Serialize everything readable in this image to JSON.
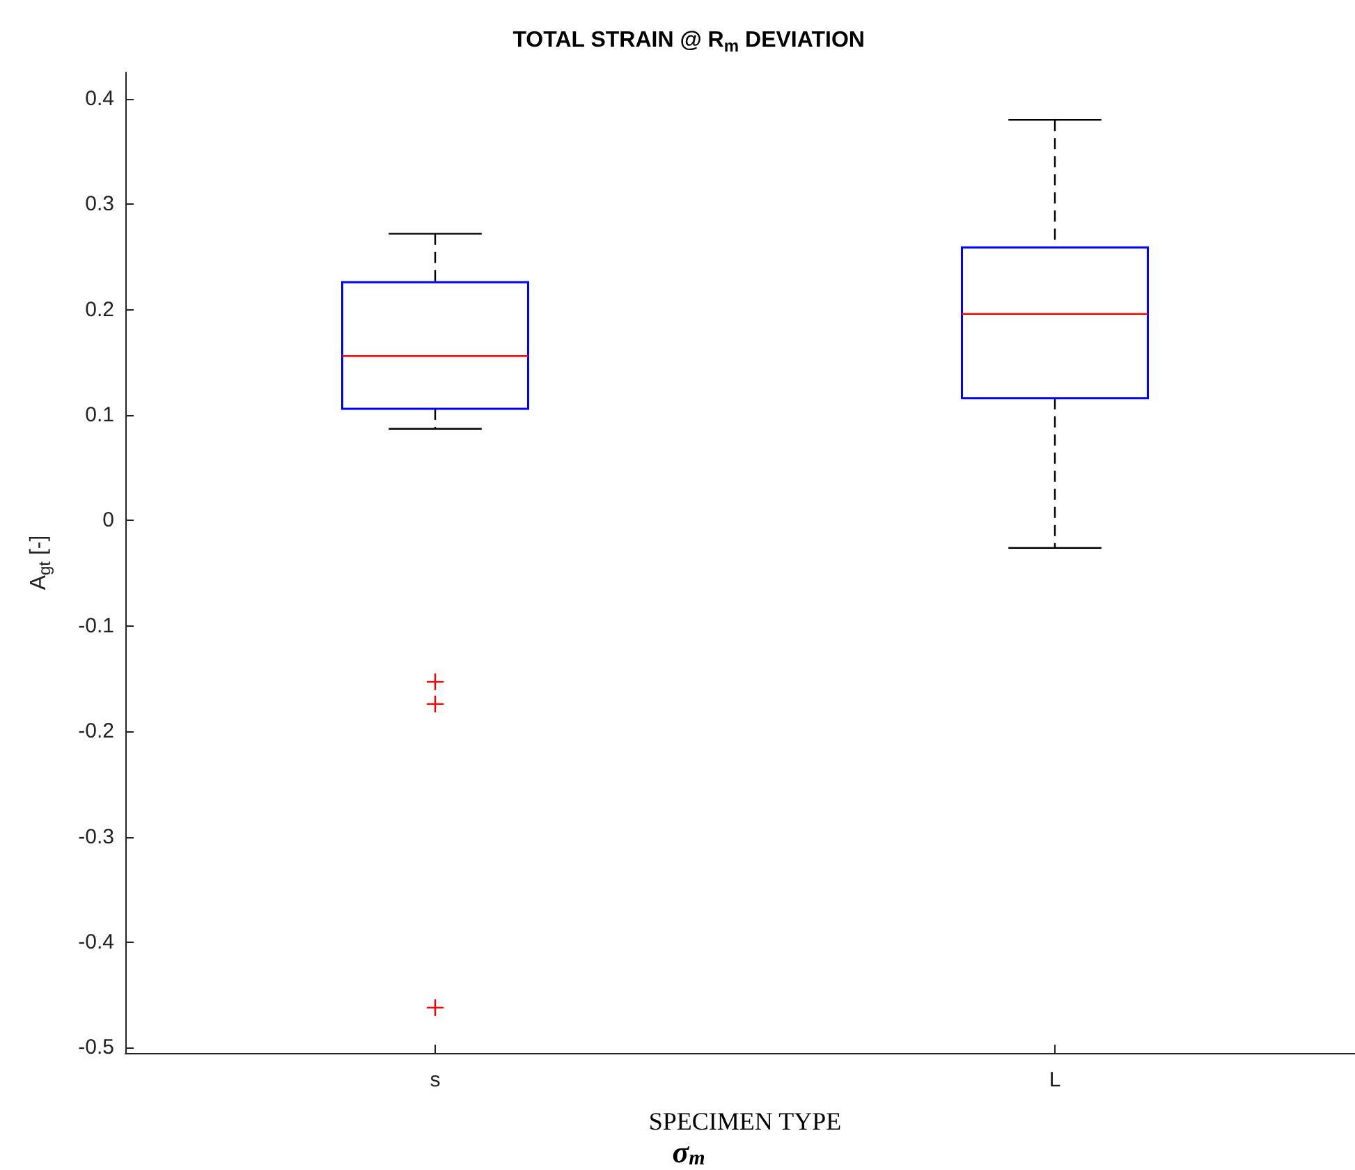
{
  "chart_data": {
    "type": "box",
    "title": "TOTAL STRAIN @ R$_{m}$ DEVIATION",
    "xlabel": "SPECIMEN TYPE",
    "ylabel": "A$_{gt}$ [-]",
    "annotations": [
      "σ$_{m}$"
    ],
    "categories": [
      "s",
      "L"
    ],
    "series": [
      {
        "color": "#0000ff",
        "line_style": "dashed",
        "boxes": [
          {
            "low": 0.087,
            "q1": 0.106,
            "median": 0.156,
            "q3": 0.226,
            "high": 0.272,
            "outliers": [
              -0.153,
              -0.174,
              -0.462
            ]
          },
          {
            "low": -0.026,
            "q1": 0.116,
            "median": 0.196,
            "q3": 0.259,
            "high": 0.38
          }
        ]
      }
    ],
    "ylim": [
      -0.505,
      0.425
    ],
    "yticks": [
      -0.5,
      -0.4,
      -0.3,
      -0.2,
      -0.1,
      0,
      0.1,
      0.2,
      0.3,
      0.4
    ]
  }
}
